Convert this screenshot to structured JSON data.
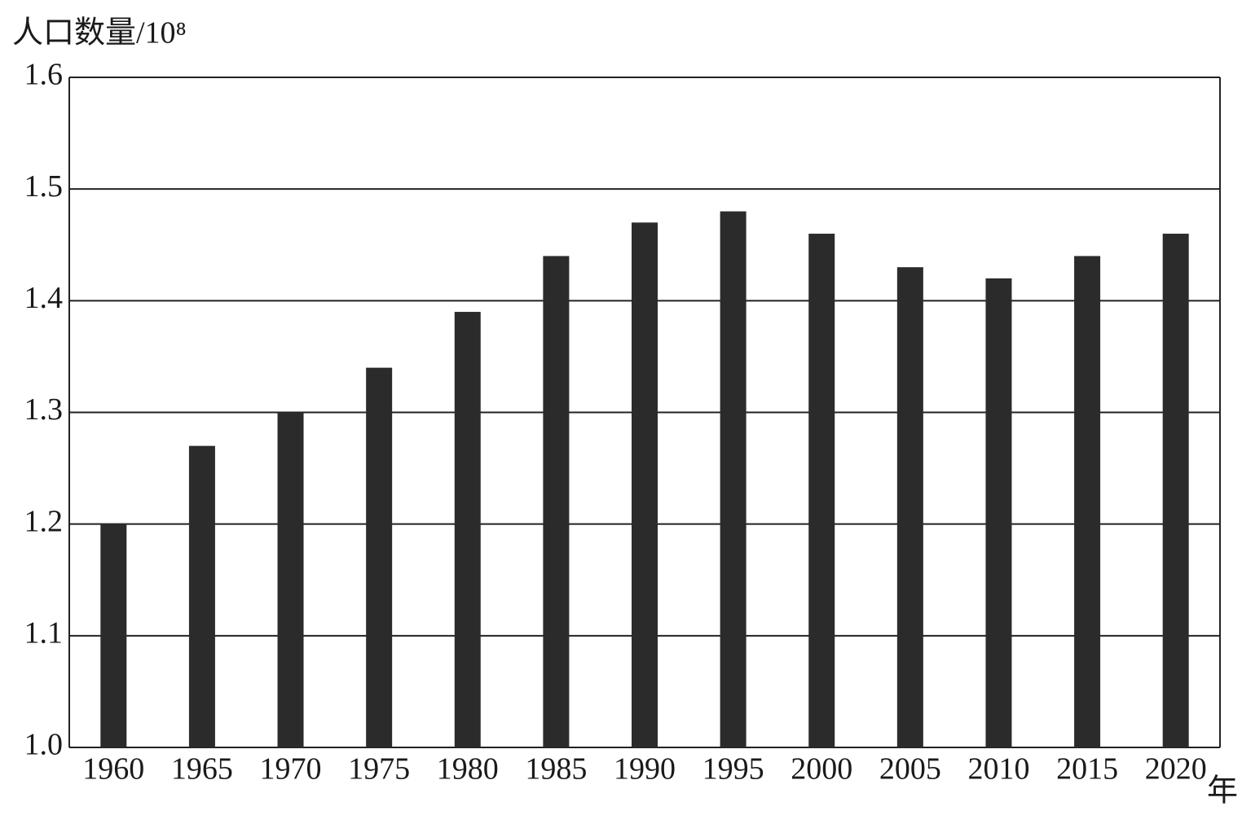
{
  "chart_data": {
    "type": "bar",
    "y_label": "人口数量/10⁸",
    "x_label": "年",
    "categories": [
      "1960",
      "1965",
      "1970",
      "1975",
      "1980",
      "1985",
      "1990",
      "1995",
      "2000",
      "2005",
      "2010",
      "2015",
      "2020"
    ],
    "values": [
      1.2,
      1.27,
      1.3,
      1.34,
      1.39,
      1.44,
      1.47,
      1.48,
      1.46,
      1.43,
      1.42,
      1.44,
      1.46
    ],
    "color": "#2b2b2b",
    "ylim": [
      1.0,
      1.6
    ],
    "yticks": [
      {
        "value": 1.0,
        "label": "1.0"
      },
      1.1,
      1.2,
      1.3,
      1.4,
      1.5,
      1.6
    ],
    "grid": true
  }
}
